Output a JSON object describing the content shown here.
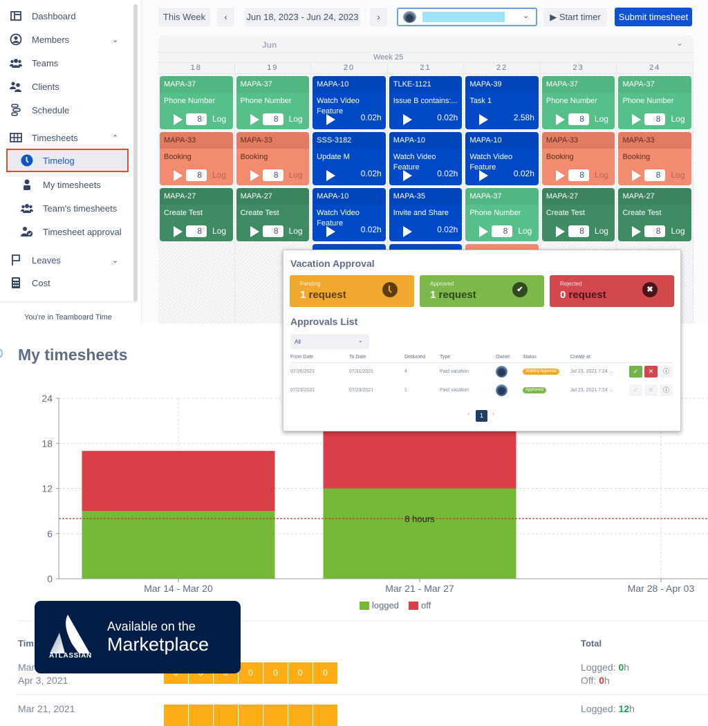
{
  "sidebar": {
    "items": [
      {
        "label": "Dashboard",
        "icon": "dashboard-icon"
      },
      {
        "label": "Members",
        "icon": "user-circle-icon",
        "expandable": true
      },
      {
        "label": "Teams",
        "icon": "team-icon"
      },
      {
        "label": "Clients",
        "icon": "clients-icon"
      },
      {
        "label": "Schedule",
        "icon": "schedule-icon"
      },
      {
        "label": "Timesheets",
        "icon": "grid-icon",
        "expanded": true
      },
      {
        "label": "Timelog",
        "icon": "clock-icon",
        "active": true
      },
      {
        "label": "My timesheets",
        "icon": "person-icon"
      },
      {
        "label": "Team's timesheets",
        "icon": "team-icon"
      },
      {
        "label": "Timesheet approval",
        "icon": "user-check-icon"
      },
      {
        "label": "Leaves",
        "icon": "flag-icon",
        "expandable": true
      },
      {
        "label": "Cost",
        "icon": "calculator-icon"
      }
    ],
    "footer": "You're in Teamboard Time"
  },
  "toolbar": {
    "this_week": "This Week",
    "prev": "‹",
    "date_range": "Jun 18, 2023 - Jun 24, 2023",
    "next": "›",
    "user_select_chevron": "⌄",
    "start_timer": "▶ Start timer",
    "submit": "Submit timesheet"
  },
  "calendar": {
    "month": "Jun",
    "week": "Week 25",
    "days": [
      "18",
      "19",
      "20",
      "21",
      "22",
      "23",
      "24"
    ],
    "columns": [
      [
        {
          "key": "MAPA-37",
          "title": "Phone Number",
          "color": "green",
          "input": "8",
          "action": "Log"
        },
        {
          "key": "MAPA-33",
          "title": "Booking",
          "color": "salmon",
          "input": "8",
          "action": "Log"
        },
        {
          "key": "MAPA-27",
          "title": "Create Test",
          "color": "dgreen",
          "input": "8",
          "action": "Log"
        }
      ],
      [
        {
          "key": "MAPA-37",
          "title": "Phone Number",
          "color": "green",
          "input": "8",
          "action": "Log"
        },
        {
          "key": "MAPA-33",
          "title": "Booking",
          "color": "salmon",
          "input": "8",
          "action": "Log"
        },
        {
          "key": "MAPA-27",
          "title": "Create Test",
          "color": "dgreen",
          "input": "8",
          "action": "Log"
        }
      ],
      [
        {
          "key": "MAPA-10",
          "title": "Watch Video Feature",
          "color": "blue",
          "hours": "0.02h"
        },
        {
          "key": "SSS-3182",
          "title": "Update M",
          "color": "blue",
          "hours": "0.02h"
        },
        {
          "key": "MAPA-10",
          "title": "Watch Video Feature",
          "color": "blue",
          "hours": "0.02h"
        }
      ],
      [
        {
          "key": "TLKE-1121",
          "title": "Issue B contains:...",
          "color": "blue",
          "hours": "0.02h"
        },
        {
          "key": "MAPA-10",
          "title": "Watch Video Feature",
          "color": "blue",
          "hours": "0.02h"
        },
        {
          "key": "MAPA-35",
          "title": "Invite and Share",
          "color": "blue",
          "hours": "0.02h"
        }
      ],
      [
        {
          "key": "MAPA-39",
          "title": "Task 1",
          "color": "blue",
          "hours": "2.58h"
        },
        {
          "key": "MAPA-10",
          "title": "Watch Video Feature",
          "color": "blue",
          "hours": "0.02h"
        },
        {
          "key": "MAPA-37",
          "title": "Phone Number",
          "color": "green",
          "input": "8",
          "action": "Log"
        }
      ],
      [
        {
          "key": "MAPA-37",
          "title": "Phone Number",
          "color": "green",
          "input": "8",
          "action": "Log"
        },
        {
          "key": "MAPA-33",
          "title": "Booking",
          "color": "salmon",
          "input": "8",
          "action": "Log"
        },
        {
          "key": "MAPA-27",
          "title": "Create Test",
          "color": "dgreen",
          "input": "8",
          "action": "Log"
        }
      ],
      [
        {
          "key": "MAPA-37",
          "title": "Phone Number",
          "color": "green",
          "input": "8",
          "action": "Log"
        },
        {
          "key": "MAPA-33",
          "title": "Booking",
          "color": "salmon",
          "input": "8",
          "action": "Log"
        },
        {
          "key": "MAPA-27",
          "title": "Create Test",
          "color": "dgreen",
          "input": "8",
          "action": "Log"
        }
      ]
    ]
  },
  "vacation": {
    "title": "Vacation Approval",
    "stats": [
      {
        "label": "Pending",
        "count": "1",
        "unit": " request",
        "color": "#f0a92e",
        "icon": "clock-icon"
      },
      {
        "label": "Approved",
        "count": "1",
        "unit": " request",
        "color": "#7cb84a",
        "icon": "check-icon"
      },
      {
        "label": "Rejected",
        "count": "0",
        "unit": " request",
        "color": "#d2484d",
        "icon": "close-icon"
      }
    ],
    "list_title": "Approvals List",
    "filter": "All",
    "columns": [
      "From Date",
      "To Date",
      "Deducted",
      "Type",
      "Owner",
      "Status",
      "Create at"
    ],
    "rows": [
      {
        "from": "07/26/2021",
        "to": "07/31/2021",
        "deducted": "4",
        "type": "Paid vacation",
        "status": "Waiting Approval",
        "status_color": "#f0a92e",
        "created": "Jul 23, 2021 7:24 ...",
        "actions_enabled": true
      },
      {
        "from": "07/23/2021",
        "to": "07/23/2021",
        "deducted": "1",
        "type": "Paid vacation",
        "status": "Approved",
        "status_color": "#7cb84a",
        "created": "Jul 23, 2021 7:24 ...",
        "actions_enabled": false
      }
    ],
    "pager": {
      "prev": "‹",
      "page": "1",
      "next": "›"
    }
  },
  "my_timesheets": {
    "title": "My timesheets",
    "table_head": "Tim",
    "total_head": "Total",
    "rows": [
      {
        "date_line1": "Mar",
        "date_line2": "Apr 3, 2021",
        "cells": [
          "0",
          "0",
          "0",
          "0",
          "0",
          "0",
          "0"
        ],
        "logged_label": "Logged: ",
        "logged": "0",
        "off_label": "Off: ",
        "off": "0",
        "unit": "h"
      },
      {
        "date_line1": "Mar 21, 2021",
        "logged_label": "Logged: ",
        "logged": "12",
        "unit": "h"
      }
    ]
  },
  "badge": {
    "brand": "ATLASSIAN",
    "line1": "Available on the",
    "line2": "Marketplace"
  },
  "chart_data": {
    "type": "bar",
    "stacked": true,
    "categories": [
      "Mar 14 - Mar 20",
      "Mar 21 - Mar 27",
      "Mar 28 - Apr 03"
    ],
    "series": [
      {
        "name": "logged",
        "color": "#74b936",
        "values": [
          9,
          12,
          0
        ]
      },
      {
        "name": "off",
        "color": "#da3f48",
        "values": [
          8,
          8,
          0
        ]
      }
    ],
    "ylim": [
      0,
      24
    ],
    "yticks": [
      0,
      6,
      12,
      18,
      24
    ],
    "reference_line": {
      "value": 8,
      "label": "8 hours",
      "color": "#c0392b"
    },
    "grid": true,
    "legend_position": "bottom",
    "xlabel": "",
    "ylabel": "",
    "title": ""
  }
}
